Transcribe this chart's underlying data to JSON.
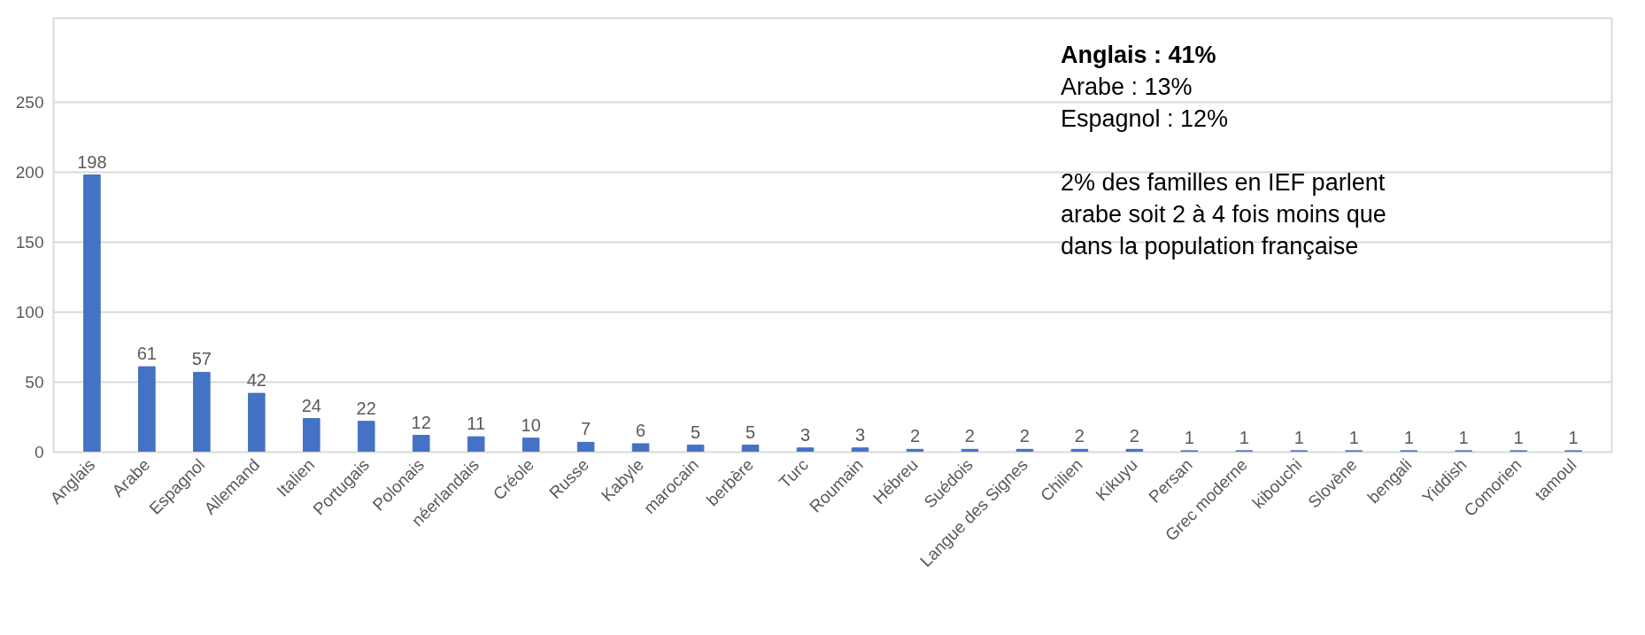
{
  "chart_data": {
    "type": "bar",
    "categories": [
      "Anglais",
      "Arabe",
      "Espagnol",
      "Allemand",
      "Italien",
      "Portugais",
      "Polonais",
      "néerlandais",
      "Créole",
      "Russe",
      "Kabyle",
      "marocain",
      "berbère",
      "Turc",
      "Roumain",
      "Hébreu",
      "Suédois",
      "Langue des Signes",
      "Chilien",
      "Kikuyu",
      "Persan",
      "Grec moderne",
      "kibouchi",
      "Slovène",
      "bengali",
      "Yiddish",
      "Comorien",
      "tamoul"
    ],
    "values": [
      198,
      61,
      57,
      42,
      24,
      22,
      12,
      11,
      10,
      7,
      6,
      5,
      5,
      3,
      3,
      2,
      2,
      2,
      2,
      2,
      1,
      1,
      1,
      1,
      1,
      1,
      1,
      1
    ],
    "color": "#4472c4",
    "ylim": [
      0,
      310
    ],
    "yticks": [
      0,
      50,
      100,
      150,
      200,
      250
    ],
    "grid": "y",
    "data_labels": true,
    "annotations": [
      "Anglais : 41%",
      "Arabe : 13%",
      "Espagnol : 12%",
      "2% des familles en IEF parlent arabe soit 2 à 4 fois moins que dans la population française"
    ]
  }
}
